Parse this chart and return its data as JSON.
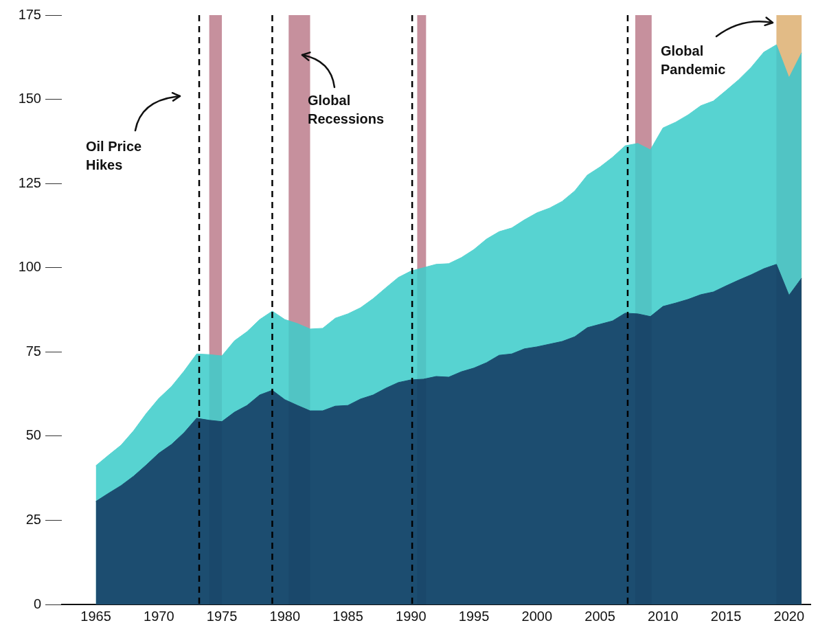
{
  "chart_data": {
    "type": "area",
    "x": [
      1965,
      1966,
      1967,
      1968,
      1969,
      1970,
      1971,
      1972,
      1973,
      1974,
      1975,
      1976,
      1977,
      1978,
      1979,
      1980,
      1981,
      1982,
      1983,
      1984,
      1985,
      1986,
      1987,
      1988,
      1989,
      1990,
      1991,
      1992,
      1993,
      1994,
      1995,
      1996,
      1997,
      1998,
      1999,
      2000,
      2001,
      2002,
      2003,
      2004,
      2005,
      2006,
      2007,
      2008,
      2009,
      2010,
      2011,
      2012,
      2013,
      2014,
      2015,
      2016,
      2017,
      2018,
      2019,
      2020,
      2021
    ],
    "series": [
      {
        "color": "#57d3d1",
        "values": [
          41.2,
          44.3,
          47.3,
          51.6,
          56.7,
          61.2,
          64.7,
          69.3,
          74.4,
          74.2,
          73.8,
          78.3,
          81,
          84.6,
          87.1,
          84.6,
          83.4,
          81.8,
          82,
          85,
          86.3,
          88.1,
          90.8,
          94,
          97.1,
          99,
          100,
          101,
          101.2,
          103,
          105.4,
          108.5,
          110.7,
          111.8,
          114.2,
          116.3,
          117.7,
          119.7,
          122.8,
          127.5,
          129.9,
          132.8,
          136.2,
          136.9,
          135,
          141.5,
          143.2,
          145.4,
          148.1,
          149.5,
          152.6,
          155.8,
          159.5,
          164,
          166.2,
          156.4,
          163.8
        ]
      },
      {
        "color": "#1c4d70",
        "values": [
          30.6,
          33,
          35.3,
          38.1,
          41.4,
          44.9,
          47.5,
          51,
          55.3,
          54.7,
          54.3,
          57.1,
          59.1,
          62.2,
          63.6,
          60.8,
          59.1,
          57.5,
          57.5,
          58.9,
          59.1,
          61,
          62.2,
          64.2,
          65.9,
          66.7,
          66.9,
          67.7,
          67.5,
          69.1,
          70.2,
          71.8,
          74,
          74.4,
          75.9,
          76.5,
          77.3,
          78.1,
          79.5,
          82.2,
          83.2,
          84.2,
          86.5,
          86.3,
          85.5,
          88.5,
          89.5,
          90.6,
          92,
          92.8,
          94.6,
          96.3,
          97.9,
          99.7,
          101,
          91.8,
          96.9
        ]
      }
    ],
    "xlim": [
      1962.3,
      2021.7
    ],
    "xticks": [
      1965,
      1970,
      1975,
      1980,
      1985,
      1990,
      1995,
      2000,
      2005,
      2010,
      2015,
      2020
    ],
    "ylim": [
      0,
      175
    ],
    "yticks": [
      0,
      25,
      50,
      75,
      100,
      125,
      150,
      175
    ],
    "bands": [
      {
        "axis": "x",
        "from": 1974,
        "to": 1975,
        "color": "#d69ba6"
      },
      {
        "axis": "x",
        "from": 1980.3,
        "to": 1982,
        "color": "#d69ba6"
      },
      {
        "axis": "x",
        "from": 1990.5,
        "to": 1991.2,
        "color": "#d69ba6"
      },
      {
        "axis": "x",
        "from": 2007.8,
        "to": 2009.1,
        "color": "#d69ba6"
      },
      {
        "axis": "x",
        "from": 2019,
        "to": 2021,
        "color": "#f5c98e"
      }
    ],
    "ref_lines": [
      {
        "axis": "x",
        "value": 1973.2,
        "line_style": "dashed",
        "color": "#000000"
      },
      {
        "axis": "x",
        "value": 1979,
        "line_style": "dashed",
        "color": "#000000"
      },
      {
        "axis": "x",
        "value": 1990.1,
        "line_style": "dashed",
        "color": "#000000"
      },
      {
        "axis": "x",
        "value": 2007.2,
        "line_style": "dashed",
        "color": "#000000"
      }
    ],
    "annotations": [
      "Oil Price Hikes",
      "Global Recessions",
      "Global Pandemic"
    ]
  }
}
